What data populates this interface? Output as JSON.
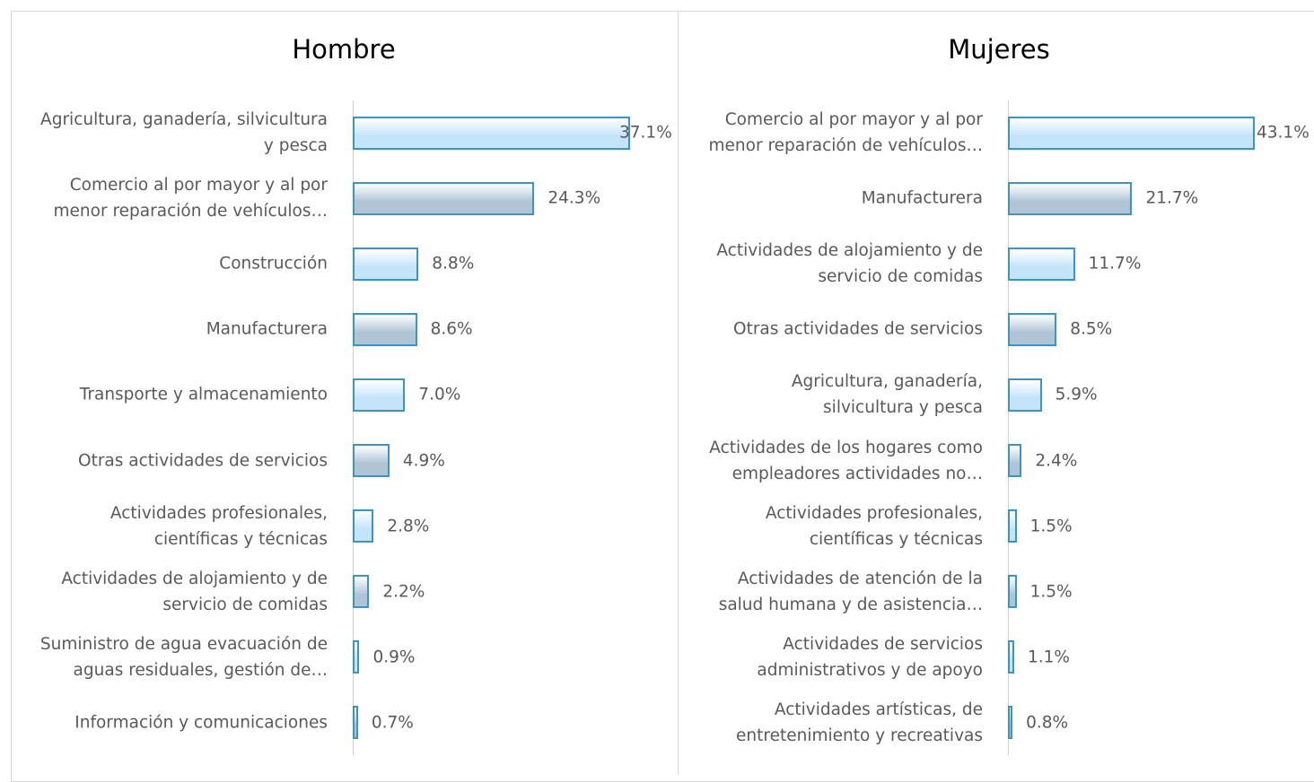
{
  "chart_data": [
    {
      "type": "bar",
      "orientation": "horizontal",
      "title": "Hombre",
      "categories": [
        "Agricultura, ganadería, silvicultura\ny pesca",
        "Comercio al por mayor y al por\nmenor reparación de vehículos…",
        "Construcción",
        "Manufacturera",
        "Transporte y almacenamiento",
        "Otras actividades de servicios",
        "Actividades profesionales,\ncientíficas y técnicas",
        "Actividades de alojamiento y de\nservicio de comidas",
        "Suministro de agua evacuación de\naguas residuales, gestión de…",
        "Información y comunicaciones"
      ],
      "values": [
        37.1,
        24.3,
        8.8,
        8.6,
        7.0,
        4.9,
        2.8,
        2.2,
        0.9,
        0.7
      ],
      "value_labels": [
        "37.1%",
        "24.3%",
        "8.8%",
        "8.6%",
        "7.0%",
        "4.9%",
        "2.8%",
        "2.2%",
        "0.9%",
        "0.7%"
      ],
      "colors": [
        "#c4e4f9",
        "#b0c4d6"
      ]
    },
    {
      "type": "bar",
      "orientation": "horizontal",
      "title": "Mujeres",
      "categories": [
        "Comercio al por mayor y al por\nmenor reparación de vehículos…",
        "Manufacturera",
        "Actividades de alojamiento y de\nservicio de comidas",
        "Otras actividades de servicios",
        "Agricultura, ganadería,\nsilvicultura y pesca",
        "Actividades de los hogares como\nempleadores actividades no…",
        "Actividades profesionales,\ncientíficas y técnicas",
        "Actividades de atención de la\nsalud humana y de asistencia…",
        "Actividades de servicios\nadministrativos y de apoyo",
        "Actividades artísticas, de\nentretenimiento y recreativas"
      ],
      "values": [
        43.1,
        21.7,
        11.7,
        8.5,
        5.9,
        2.4,
        1.5,
        1.5,
        1.1,
        0.8
      ],
      "value_labels": [
        "43.1%",
        "21.7%",
        "11.7%",
        "8.5%",
        "5.9%",
        "2.4%",
        "1.5%",
        "1.5%",
        "1.1%",
        "0.8%"
      ],
      "colors": [
        "#c4e4f9",
        "#b0c4d6"
      ]
    }
  ]
}
